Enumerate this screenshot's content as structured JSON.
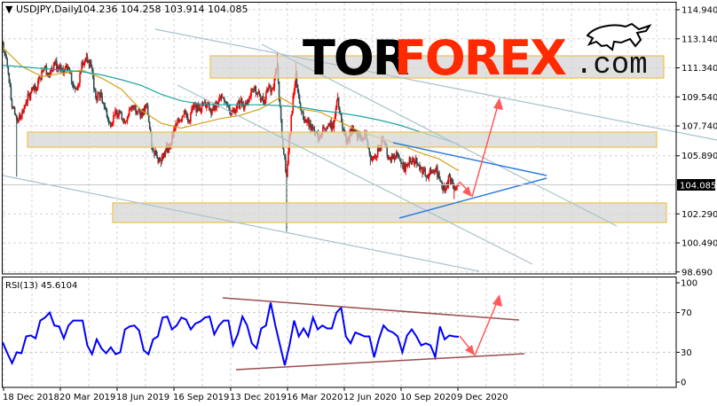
{
  "header": {
    "symbol_caption": "▼ USDJPY,Daily",
    "ohlc": "104.236 104.258 103.914 104.085"
  },
  "logo": {
    "part1": "TOR",
    "part2": "FOREX",
    "part3": ".com"
  },
  "price_axis": {
    "ticks": [
      "114.940",
      "113.140",
      "111.340",
      "109.540",
      "107.740",
      "105.890",
      "102.290",
      "100.490",
      "98.690"
    ],
    "current_price": "104.085"
  },
  "rsi_panel": {
    "label": "RSI(13) 45.6104",
    "ticks": [
      "100",
      "70",
      "30",
      "0"
    ]
  },
  "time_axis": {
    "labels": [
      "18 Dec 2018",
      "20 Mar 2019",
      "18 Jun 2019",
      "16 Sep 2019",
      "13 Dec 2019",
      "16 Mar 2020",
      "12 Jun 2020",
      "10 Sep 2020",
      "9 Dec 2020"
    ]
  },
  "colors": {
    "bull_candle": "#ff0000",
    "bear_candle": "#2f4f4f",
    "ma_fast": "#d4a017",
    "ma_slow": "#1aa5a0",
    "rsi_line": "#0000ff",
    "channel_line": "#a9c1cc",
    "triangle_line": "#2f7de1",
    "rsi_trend_line": "#9b4d4d",
    "forecast_arrow": "#ff5a5a",
    "zone_border": "#f0c24a",
    "zone_fill": "#d6d6d6"
  },
  "chart_data": [
    {
      "type": "candlestick",
      "title": "USDJPY,Daily",
      "ylim": [
        98.69,
        114.94
      ],
      "yticks": [
        114.94,
        113.14,
        111.34,
        109.54,
        107.74,
        105.89,
        102.29,
        100.49,
        98.69
      ],
      "xticks": [
        "18 Dec 2018",
        "20 Mar 2019",
        "18 Jun 2019",
        "16 Sep 2019",
        "13 Dec 2019",
        "16 Mar 2020",
        "12 Jun 2020",
        "10 Sep 2020",
        "9 Dec 2020"
      ],
      "grid": true,
      "last": {
        "open": 104.236,
        "high": 104.258,
        "low": 103.914,
        "close": 104.085
      },
      "close": [
        112.9,
        111.4,
        108.9,
        108.1,
        108.4,
        109.2,
        109.8,
        110.0,
        110.7,
        111.4,
        110.9,
        111.7,
        111.3,
        111.0,
        111.4,
        110.3,
        110.0,
        111.7,
        112.0,
        111.4,
        109.5,
        109.8,
        108.9,
        107.9,
        108.4,
        108.7,
        108.1,
        108.4,
        109.0,
        108.7,
        108.4,
        109.0,
        106.5,
        105.9,
        105.6,
        106.2,
        106.5,
        107.6,
        108.1,
        108.7,
        108.1,
        109.0,
        108.7,
        109.0,
        109.1,
        108.7,
        109.2,
        109.5,
        109.1,
        108.4,
        108.7,
        109.2,
        109.0,
        109.5,
        110.0,
        109.8,
        109.2,
        110.0,
        110.0,
        111.4,
        107.0,
        104.6,
        108.4,
        111.0,
        108.7,
        108.1,
        107.9,
        107.3,
        107.0,
        107.6,
        107.9,
        107.6,
        109.5,
        107.6,
        106.8,
        107.6,
        107.3,
        107.0,
        107.3,
        105.9,
        105.9,
        106.5,
        106.8,
        105.7,
        105.9,
        105.9,
        105.1,
        105.4,
        105.7,
        105.4,
        105.1,
        104.6,
        104.8,
        105.1,
        104.3,
        103.7,
        104.6,
        104.0,
        104.085
      ],
      "extremes": [
        {
          "i": 3,
          "low": 104.6
        },
        {
          "i": 18,
          "high": 112.3
        },
        {
          "i": 34,
          "low": 105.2
        },
        {
          "i": 59,
          "high": 112.2
        },
        {
          "i": 61,
          "low": 101.2
        },
        {
          "i": 63,
          "high": 111.7
        },
        {
          "i": 72,
          "high": 109.8
        },
        {
          "i": 79,
          "low": 105.3
        },
        {
          "i": 91,
          "low": 104.3
        },
        {
          "i": 97,
          "low": 103.2
        }
      ],
      "moving_averages": [
        {
          "color": "#d4a017",
          "values": [
            112.6,
            111.4,
            110.8,
            111.0,
            111.2,
            110.7,
            110.0,
            108.7,
            107.9,
            107.6,
            107.9,
            108.2,
            108.4,
            108.8,
            109.5,
            108.8,
            108.6,
            108.0,
            107.4,
            107.0,
            106.6,
            106.1,
            105.7,
            104.95
          ]
        },
        {
          "color": "#1aa5a0",
          "values": [
            111.5,
            111.4,
            111.3,
            111.2,
            111.1,
            110.9,
            110.6,
            110.25,
            109.7,
            109.3,
            109.1,
            109.05,
            109.05,
            109.05,
            109.0,
            108.9,
            108.7,
            108.55,
            108.35,
            108.1,
            107.8,
            107.4,
            107.0,
            106.6
          ]
        }
      ]
    },
    {
      "type": "line",
      "title": "RSI(13) 45.6104",
      "ylim": [
        0,
        100
      ],
      "yticks": [
        100,
        70,
        30,
        0
      ],
      "levels": [
        70,
        30
      ],
      "values": [
        40,
        29,
        19,
        30,
        29,
        46,
        47,
        44,
        62,
        65,
        70,
        57,
        56,
        44,
        57,
        62,
        62,
        62,
        37,
        28,
        43,
        34,
        29,
        35,
        28,
        30,
        53,
        56,
        57,
        52,
        32,
        28,
        43,
        46,
        65,
        66,
        53,
        57,
        65,
        63,
        53,
        59,
        61,
        65,
        66,
        48,
        57,
        62,
        62,
        37,
        48,
        66,
        57,
        39,
        34,
        54,
        57,
        80,
        57,
        37,
        17,
        37,
        62,
        46,
        54,
        46,
        65,
        53,
        57,
        54,
        54,
        70,
        75,
        46,
        39,
        50,
        48,
        46,
        46,
        25,
        43,
        57,
        52,
        50,
        46,
        30,
        47,
        53,
        46,
        37,
        39,
        37,
        25,
        56,
        43,
        47,
        46,
        45.6
      ]
    }
  ]
}
